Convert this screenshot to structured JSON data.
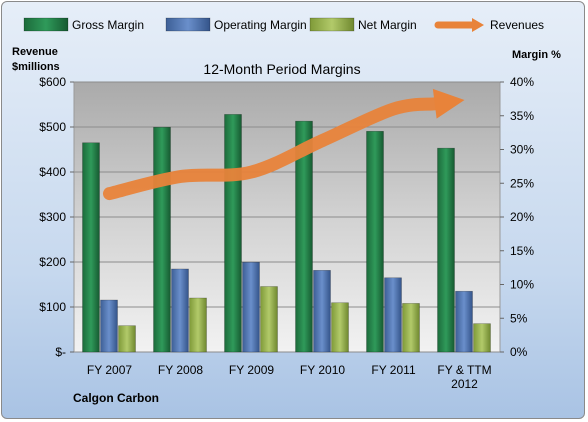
{
  "chart_data": {
    "type": "bar",
    "title": "12-Month Period Margins",
    "company": "Calgon Carbon",
    "y_left_label": [
      "Revenue",
      "$millions"
    ],
    "y_right_label": "Margin %",
    "categories": [
      "FY 2007",
      "FY 2008",
      "FY 2009",
      "FY 2010",
      "FY 2011",
      "FY & TTM 2012"
    ],
    "y_left_ticks": [
      "$600",
      "$500",
      "$400",
      "$300",
      "$200",
      "$100",
      "$-"
    ],
    "y_right_ticks": [
      "40%",
      "35%",
      "30%",
      "25%",
      "20%",
      "15%",
      "10%",
      "5%",
      "0%"
    ],
    "ylim_left": [
      0,
      600
    ],
    "ylim_right": [
      0,
      40
    ],
    "series": [
      {
        "name": "Gross Margin",
        "axis": "right",
        "color": "#1e7a45",
        "values": [
          31,
          33.3,
          35.2,
          34.2,
          32.7,
          30.2
        ]
      },
      {
        "name": "Operating Margin",
        "axis": "right",
        "color": "#4a72b0",
        "values": [
          7.7,
          12.3,
          13.3,
          12.1,
          11,
          9
        ]
      },
      {
        "name": "Net Margin",
        "axis": "right",
        "color": "#93ad4a",
        "values": [
          3.9,
          8,
          9.7,
          7.3,
          7.2,
          4.2
        ]
      },
      {
        "name": "Revenues",
        "axis": "left",
        "type": "line-arrow",
        "color": "#e8833a",
        "values": [
          352,
          390,
          400,
          470,
          540,
          560
        ]
      }
    ],
    "grid": true,
    "legend": "top"
  }
}
